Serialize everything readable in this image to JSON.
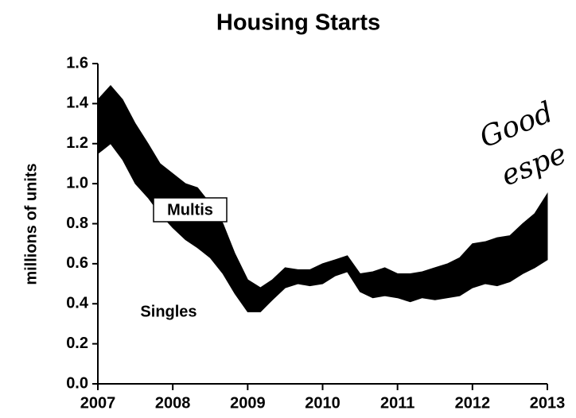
{
  "chart_data": {
    "type": "stacked_area",
    "title": "Housing Starts",
    "y_label": "millions of units",
    "x": [
      2007,
      2007.17,
      2007.33,
      2007.5,
      2007.67,
      2007.83,
      2008,
      2008.17,
      2008.33,
      2008.5,
      2008.67,
      2008.83,
      2009,
      2009.17,
      2009.33,
      2009.5,
      2009.67,
      2009.83,
      2010,
      2010.17,
      2010.33,
      2010.5,
      2010.67,
      2010.83,
      2011,
      2011.17,
      2011.33,
      2011.5,
      2011.67,
      2011.83,
      2012,
      2012.17,
      2012.33,
      2012.5,
      2012.67,
      2012.83,
      2013
    ],
    "series": [
      {
        "name": "Singles",
        "color": "#ffffff",
        "values": [
          1.15,
          1.2,
          1.12,
          1.0,
          0.93,
          0.85,
          0.78,
          0.72,
          0.68,
          0.63,
          0.55,
          0.45,
          0.36,
          0.36,
          0.42,
          0.48,
          0.5,
          0.49,
          0.5,
          0.54,
          0.56,
          0.46,
          0.43,
          0.44,
          0.43,
          0.41,
          0.43,
          0.42,
          0.43,
          0.44,
          0.48,
          0.5,
          0.49,
          0.51,
          0.55,
          0.58,
          0.62
        ]
      },
      {
        "name": "Multis",
        "color": "#000000",
        "values": [
          0.27,
          0.29,
          0.3,
          0.3,
          0.27,
          0.25,
          0.27,
          0.28,
          0.3,
          0.27,
          0.25,
          0.2,
          0.16,
          0.12,
          0.1,
          0.1,
          0.07,
          0.08,
          0.1,
          0.08,
          0.08,
          0.09,
          0.13,
          0.14,
          0.12,
          0.14,
          0.13,
          0.16,
          0.17,
          0.19,
          0.22,
          0.21,
          0.24,
          0.23,
          0.25,
          0.27,
          0.33
        ]
      }
    ],
    "xlim": [
      2007,
      2013
    ],
    "xticks": [
      2007,
      2008,
      2009,
      2010,
      2011,
      2012,
      2013
    ],
    "ylim": [
      0,
      1.6
    ],
    "yticks": [
      {
        "value": 0,
        "label": "0.0"
      },
      0.2,
      0.4,
      0.6,
      0.8,
      {
        "value": 1,
        "label": "1.0"
      },
      1.2,
      1.4,
      1.6
    ],
    "grid": false,
    "annotations": [
      "Good",
      "espe"
    ]
  }
}
